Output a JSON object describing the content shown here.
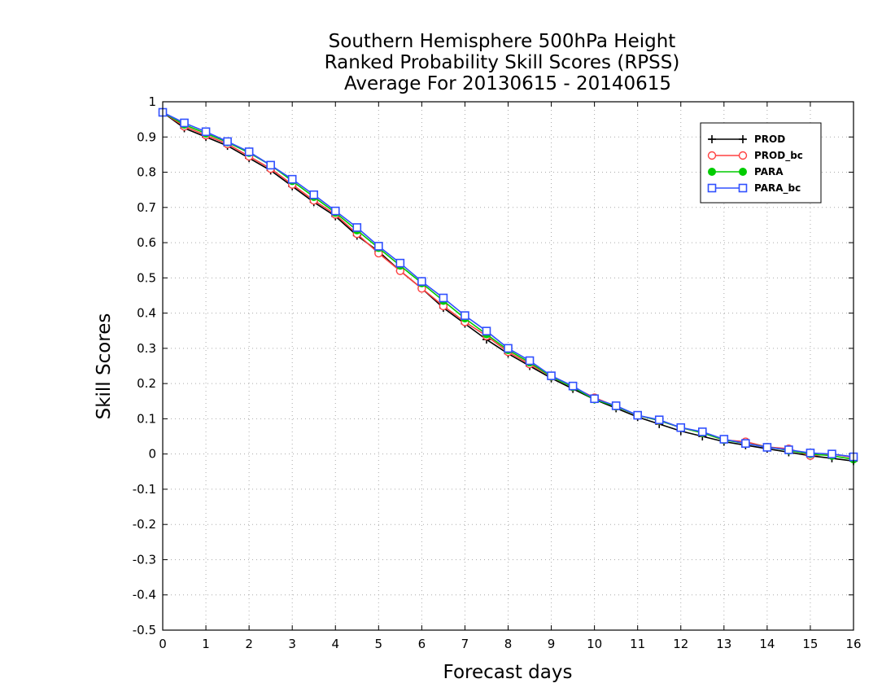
{
  "chart_data": {
    "type": "line",
    "title_lines": [
      "Southern Hemisphere 500hPa Height",
      "Ranked Probability Skill Scores (RPSS)",
      "Average For 20130615 - 20140615"
    ],
    "xlabel": "Forecast days",
    "ylabel": "Skill Scores",
    "xlim": [
      0,
      16
    ],
    "ylim": [
      -0.5,
      1
    ],
    "x_ticks": [
      "0",
      "1",
      "2",
      "3",
      "4",
      "5",
      "6",
      "7",
      "8",
      "9",
      "10",
      "11",
      "12",
      "13",
      "14",
      "15",
      "16"
    ],
    "y_ticks": [
      "-0.5",
      "-0.4",
      "-0.3",
      "-0.2",
      "-0.1",
      "0",
      "0.1",
      "0.2",
      "0.3",
      "0.4",
      "0.5",
      "0.6",
      "0.7",
      "0.8",
      "0.9",
      "1"
    ],
    "grid": true,
    "legend_position": "top-right",
    "x": [
      0,
      0.5,
      1,
      1.5,
      2,
      2.5,
      3,
      3.5,
      4,
      4.5,
      5,
      5.5,
      6,
      6.5,
      7,
      7.5,
      8,
      8.5,
      9,
      9.5,
      10,
      10.5,
      11,
      11.5,
      12,
      12.5,
      13,
      13.5,
      14,
      14.5,
      15,
      15.5,
      16
    ],
    "series": [
      {
        "name": "PROD",
        "color": "#000000",
        "marker": "plus",
        "values": [
          0.97,
          0.925,
          0.9,
          0.875,
          0.84,
          0.805,
          0.76,
          0.715,
          0.675,
          0.62,
          0.575,
          0.52,
          0.47,
          0.415,
          0.37,
          0.325,
          0.285,
          0.25,
          0.215,
          0.185,
          0.155,
          0.13,
          0.105,
          0.085,
          0.065,
          0.05,
          0.035,
          0.025,
          0.015,
          0.005,
          -0.005,
          -0.012,
          -0.02
        ]
      },
      {
        "name": "PROD_bc",
        "color": "#ff4040",
        "marker": "circle-open",
        "values": [
          0.97,
          0.93,
          0.905,
          0.88,
          0.845,
          0.81,
          0.765,
          0.72,
          0.68,
          0.625,
          0.57,
          0.52,
          0.47,
          0.42,
          0.375,
          0.335,
          0.29,
          0.255,
          0.22,
          0.19,
          0.16,
          0.135,
          0.11,
          0.095,
          0.075,
          0.06,
          0.04,
          0.035,
          0.02,
          0.015,
          -0.005,
          0.0,
          -0.01
        ]
      },
      {
        "name": "PARA",
        "color": "#00cc00",
        "marker": "circle-filled",
        "values": [
          0.97,
          0.935,
          0.91,
          0.885,
          0.855,
          0.82,
          0.775,
          0.73,
          0.685,
          0.635,
          0.585,
          0.535,
          0.485,
          0.435,
          0.385,
          0.34,
          0.295,
          0.26,
          0.22,
          0.19,
          0.155,
          0.135,
          0.11,
          0.095,
          0.075,
          0.06,
          0.04,
          0.03,
          0.02,
          0.01,
          0.0,
          -0.005,
          -0.015
        ]
      },
      {
        "name": "PARA_bc",
        "color": "#3050ff",
        "marker": "square-open",
        "values": [
          0.97,
          0.94,
          0.915,
          0.887,
          0.858,
          0.82,
          0.78,
          0.736,
          0.69,
          0.643,
          0.59,
          0.542,
          0.49,
          0.443,
          0.393,
          0.349,
          0.3,
          0.265,
          0.222,
          0.193,
          0.157,
          0.137,
          0.11,
          0.097,
          0.075,
          0.063,
          0.042,
          0.03,
          0.019,
          0.012,
          0.003,
          0.0,
          -0.008
        ]
      }
    ]
  }
}
